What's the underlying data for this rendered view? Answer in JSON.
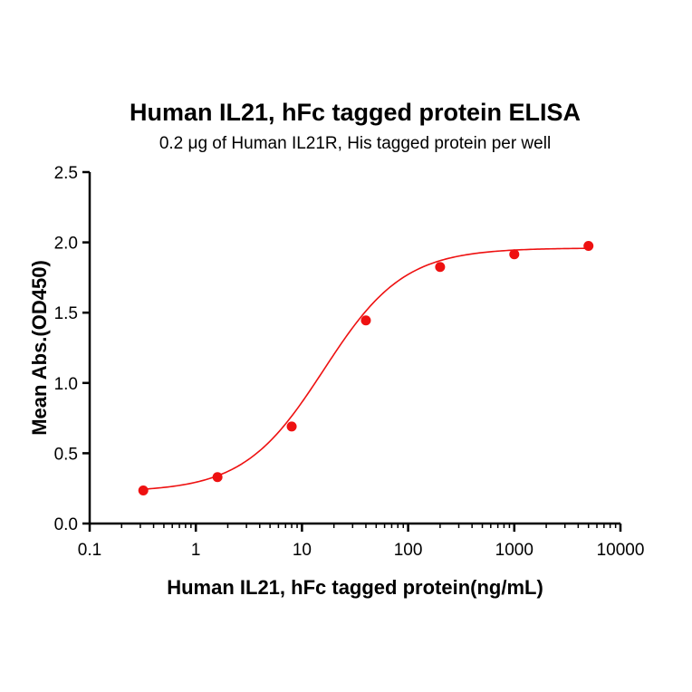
{
  "chart_data": {
    "type": "scatter",
    "title": "Human IL21, hFc tagged protein ELISA",
    "subtitle": "0.2 μg of Human IL21R, His tagged protein per well",
    "xlabel": "Human IL21, hFc tagged protein(ng/mL)",
    "ylabel": "Mean Abs.(OD450)",
    "x_scale": "log",
    "xlim": [
      0.1,
      10000
    ],
    "ylim": [
      0,
      2.5
    ],
    "x_ticks": [
      "0.1",
      "1",
      "10",
      "100",
      "1000",
      "10000"
    ],
    "y_ticks": [
      "0.0",
      "0.5",
      "1.0",
      "1.5",
      "2.0",
      "2.5"
    ],
    "grid": false,
    "series": [
      {
        "points": [
          {
            "x": 0.32,
            "y": 0.235
          },
          {
            "x": 1.6,
            "y": 0.33
          },
          {
            "x": 8,
            "y": 0.69
          },
          {
            "x": 40,
            "y": 1.445
          },
          {
            "x": 200,
            "y": 1.825
          },
          {
            "x": 1000,
            "y": 1.915
          },
          {
            "x": 5000,
            "y": 1.975
          }
        ],
        "fit": {
          "model": "4PL",
          "bottom": 0.225,
          "top": 1.96,
          "ec50": 16,
          "hill": 1.15
        },
        "color": "#ee1111"
      }
    ]
  }
}
